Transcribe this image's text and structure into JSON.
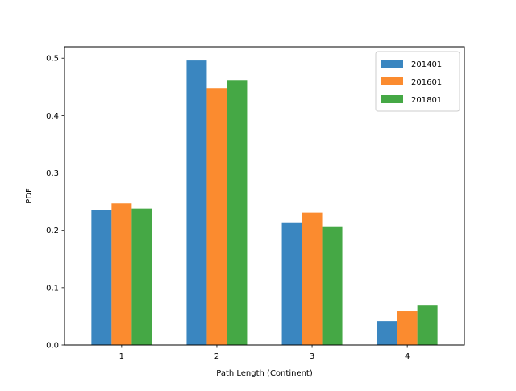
{
  "chart_data": {
    "type": "bar",
    "categories": [
      "1",
      "2",
      "3",
      "4"
    ],
    "series": [
      {
        "name": "201401",
        "values": [
          0.235,
          0.496,
          0.214,
          0.042
        ],
        "color": "#3a86c0"
      },
      {
        "name": "201601",
        "values": [
          0.247,
          0.448,
          0.231,
          0.059
        ],
        "color": "#fb8b2f"
      },
      {
        "name": "201801",
        "values": [
          0.238,
          0.462,
          0.207,
          0.07
        ],
        "color": "#45a845"
      }
    ],
    "title": "",
    "xlabel": "Path Length (Continent)",
    "ylabel": "PDF",
    "ylim": [
      0,
      0.52
    ],
    "yticks": [
      "0.0",
      "0.1",
      "0.2",
      "0.3",
      "0.4",
      "0.5"
    ],
    "grid": false,
    "legend_position": "top-right"
  }
}
